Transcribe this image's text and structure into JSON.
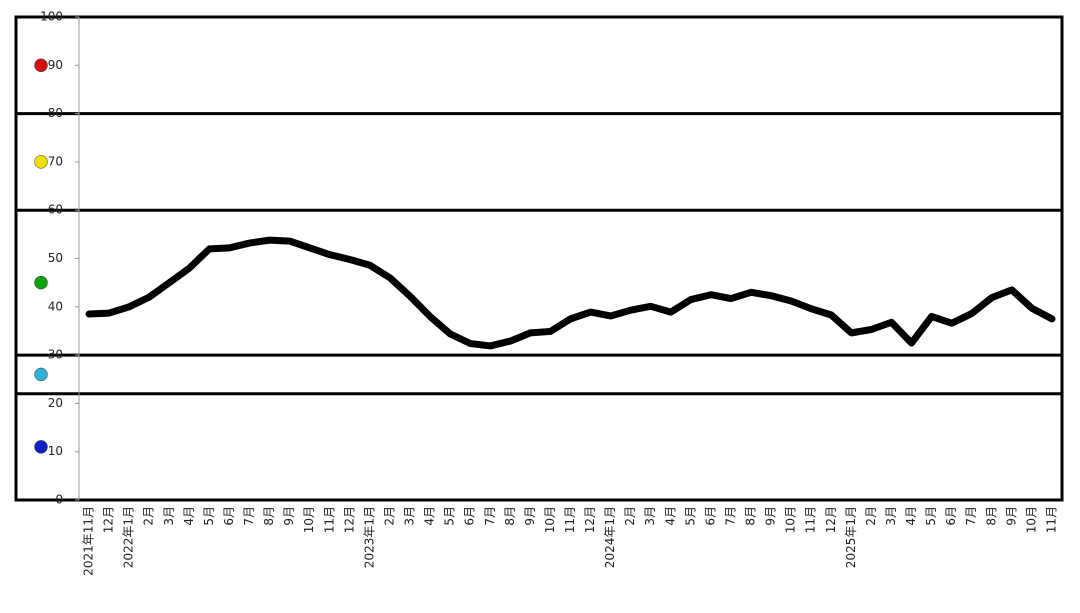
{
  "chart_data": {
    "type": "line",
    "categories": [
      "2021年11月",
      "12月",
      "2022年1月",
      "2月",
      "3月",
      "4月",
      "5月",
      "6月",
      "7月",
      "8月",
      "9月",
      "10月",
      "11月",
      "12月",
      "2023年1月",
      "2月",
      "3月",
      "4月",
      "5月",
      "6月",
      "7月",
      "8月",
      "9月",
      "10月",
      "11月",
      "12月",
      "2024年1月",
      "2月",
      "3月",
      "4月",
      "5月",
      "6月",
      "7月",
      "8月",
      "9月",
      "10月",
      "11月",
      "12月",
      "2025年1月",
      "2月",
      "3月",
      "4月",
      "5月",
      "6月",
      "7月",
      "8月",
      "9月",
      "10月",
      "11月"
    ],
    "values": [
      38.5,
      38.7,
      40,
      42,
      45,
      48,
      52,
      52.2,
      53.2,
      53.8,
      53.6,
      52.2,
      50.8,
      49.8,
      48.6,
      46,
      42.2,
      38,
      34.4,
      32.4,
      31.9,
      32.9,
      34.6,
      34.9,
      37.5,
      38.9,
      38.1,
      39.3,
      40.1,
      38.9,
      41.5,
      42.5,
      41.7,
      43,
      42.3,
      41.2,
      39.6,
      38.3,
      34.6,
      35.3,
      36.8,
      32.5,
      38,
      36.6,
      38.6,
      41.9,
      43.5,
      39.7,
      37.5
    ],
    "color": "#000000",
    "ylim": [
      0,
      100
    ],
    "yticks": [
      0,
      10,
      20,
      30,
      40,
      50,
      60,
      70,
      80,
      90,
      100
    ],
    "zone_boundaries": [
      80,
      60,
      30,
      22
    ],
    "zone_colors": [
      "#d01010",
      "#f0e000",
      "#10a010",
      "#30b0d8",
      "#1020c0"
    ]
  }
}
